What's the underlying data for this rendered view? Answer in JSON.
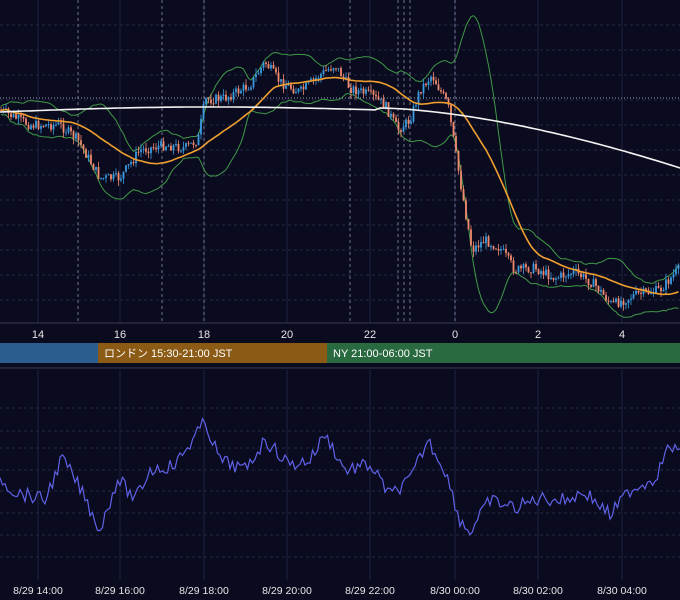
{
  "chart_data": [
    {
      "type": "candlestick",
      "title": "",
      "x_ticks": [
        "14",
        "16",
        "18",
        "20",
        "22",
        "0",
        "2",
        "4"
      ],
      "indicators": [
        "Bollinger Bands",
        "Moving Average (orange)",
        "Moving Average (white)"
      ],
      "sessions": [
        {
          "label": "",
          "color": "#2b5d8e"
        },
        {
          "label": "ロンドン 15:30-21:00 JST",
          "color": "#8b5a14"
        },
        {
          "label": "NY 21:00-06:00 JST",
          "color": "#2a6a40"
        }
      ],
      "colors": {
        "up": "#3a9be0",
        "down": "#f08a6e",
        "ma_orange": "#f0a030",
        "ma_white": "#f2f2f2",
        "bands": "#3f9a48"
      }
    },
    {
      "type": "line",
      "title": "",
      "x_ticks": [
        "8/29 14:00",
        "8/29 16:00",
        "8/29 18:00",
        "8/29 20:00",
        "8/29 22:00",
        "8/30 00:00",
        "8/30 02:00",
        "8/30 04:00"
      ],
      "series": [
        {
          "name": "",
          "color": "#5f62e8"
        }
      ]
    }
  ]
}
